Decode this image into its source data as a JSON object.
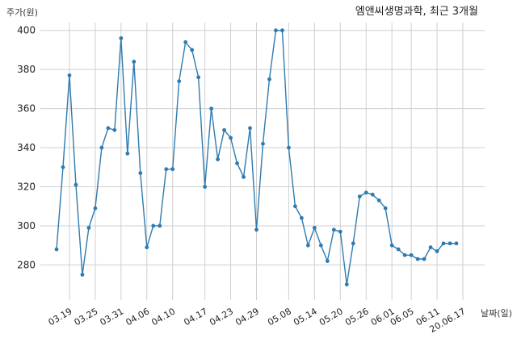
{
  "chart_data": {
    "type": "line",
    "title": "엠앤씨생명과학, 최근 3개월",
    "ylabel": "주가(원)",
    "xlabel": "날짜(일)",
    "ylim": [
      262,
      404
    ],
    "grid": true,
    "yticks": [
      280,
      300,
      320,
      340,
      360,
      380,
      400
    ],
    "x_tick_labels": [
      "03.19",
      "03.25",
      "03.31",
      "04.06",
      "04.10",
      "04.17",
      "04.23",
      "04.29",
      "05.08",
      "05.14",
      "05.20",
      "05.26",
      "06.01",
      "06.05",
      "06.11",
      "20.06.17"
    ],
    "x_tick_indices": [
      2,
      6,
      10,
      14,
      18,
      23,
      27,
      31,
      36,
      40,
      44,
      48,
      52,
      55,
      59,
      63
    ],
    "series": [
      {
        "values": [
          288,
          330,
          377,
          321,
          275,
          299,
          309,
          340,
          350,
          349,
          396,
          337,
          384,
          327,
          289,
          300,
          300,
          329,
          329,
          374,
          394,
          390,
          376,
          320,
          360,
          334,
          349,
          345,
          332,
          325,
          350,
          298,
          342,
          375,
          400,
          400,
          340,
          310,
          304,
          290,
          299,
          290,
          282,
          298,
          297,
          270,
          291,
          315,
          317,
          316,
          313,
          309,
          290,
          288,
          285,
          285,
          283,
          283,
          289,
          287,
          291,
          291,
          291
        ]
      }
    ]
  }
}
